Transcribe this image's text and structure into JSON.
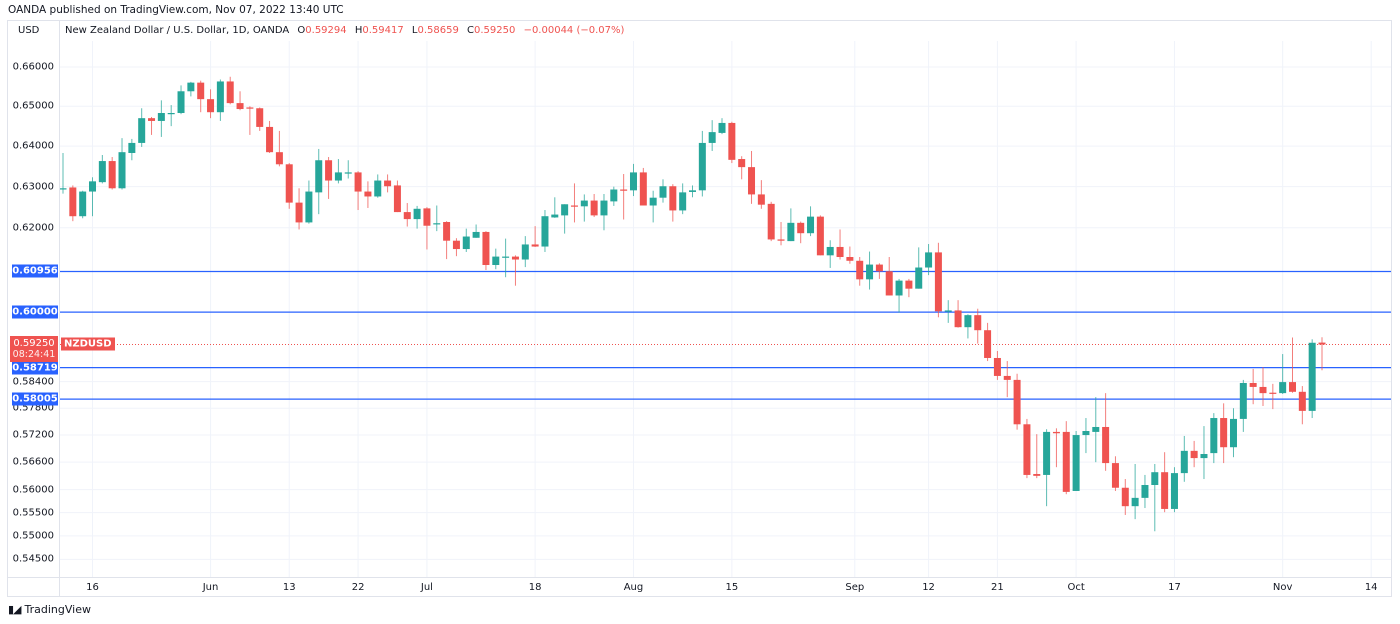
{
  "header": {
    "published": "OANDA published on TradingView.com, Nov 07, 2022 13:40 UTC",
    "currency": "USD",
    "title": "New Zealand Dollar / U.S. Dollar, 1D, OANDA",
    "o_label": "O",
    "o": "0.59294",
    "h_label": "H",
    "h": "0.59417",
    "l_label": "L",
    "l": "0.58659",
    "c_label": "C",
    "c": "0.59250",
    "change": "−0.00044 (−0.07%)"
  },
  "footer": {
    "logo_text": "TradingView",
    "logo_mark": "TV"
  },
  "colors": {
    "up": "#26a69a",
    "down": "#ef5350",
    "hline": "#2962ff",
    "grid": "#f0f3fa"
  },
  "chart_data": {
    "type": "candlestick",
    "symbol": "NZDUSD",
    "scale": "log",
    "ylim": [
      0.5405,
      0.6685
    ],
    "y_ticks": [
      "0.66000",
      "0.65000",
      "0.64000",
      "0.63000",
      "0.62000",
      "0.58400",
      "0.57800",
      "0.57200",
      "0.56600",
      "0.56000",
      "0.55500",
      "0.55000",
      "0.54500"
    ],
    "x_ticks": [
      {
        "label": "16",
        "index": 3
      },
      {
        "label": "Jun",
        "index": 15
      },
      {
        "label": "13",
        "index": 23
      },
      {
        "label": "22",
        "index": 30
      },
      {
        "label": "Jul",
        "index": 37
      },
      {
        "label": "18",
        "index": 48
      },
      {
        "label": "Aug",
        "index": 58
      },
      {
        "label": "15",
        "index": 68
      },
      {
        "label": "Sep",
        "index": 80.5
      },
      {
        "label": "12",
        "index": 88
      },
      {
        "label": "21",
        "index": 95
      },
      {
        "label": "Oct",
        "index": 103
      },
      {
        "label": "17",
        "index": 113
      },
      {
        "label": "Nov",
        "index": 124
      },
      {
        "label": "14",
        "index": 133
      }
    ],
    "horizontal_lines": [
      "0.60956",
      "0.60000",
      "0.58719",
      "0.58005"
    ],
    "last_price": {
      "value": "0.59250",
      "countdown": "08:24:41",
      "tag": "NZDUSD"
    },
    "ohlc": [
      [
        0.6293,
        0.6383,
        0.6283,
        0.6296
      ],
      [
        0.6298,
        0.6303,
        0.6216,
        0.6228
      ],
      [
        0.6228,
        0.629,
        0.6223,
        0.6288
      ],
      [
        0.6288,
        0.6323,
        0.6228,
        0.6313
      ],
      [
        0.6311,
        0.6378,
        0.6308,
        0.6363
      ],
      [
        0.6363,
        0.6373,
        0.6293,
        0.6296
      ],
      [
        0.6296,
        0.642,
        0.6293,
        0.6385
      ],
      [
        0.6383,
        0.6418,
        0.6365,
        0.6408
      ],
      [
        0.6408,
        0.6495,
        0.6398,
        0.647
      ],
      [
        0.647,
        0.6473,
        0.6428,
        0.6463
      ],
      [
        0.6463,
        0.6515,
        0.6423,
        0.6483
      ],
      [
        0.648,
        0.6503,
        0.645,
        0.6483
      ],
      [
        0.6483,
        0.6553,
        0.648,
        0.6538
      ],
      [
        0.6538,
        0.6562,
        0.6525,
        0.656
      ],
      [
        0.656,
        0.6565,
        0.6485,
        0.6518
      ],
      [
        0.6518,
        0.6543,
        0.647,
        0.6485
      ],
      [
        0.6485,
        0.6568,
        0.6463,
        0.6563
      ],
      [
        0.6563,
        0.6575,
        0.6505,
        0.6508
      ],
      [
        0.6508,
        0.6538,
        0.649,
        0.6493
      ],
      [
        0.6497,
        0.65,
        0.6428,
        0.6494
      ],
      [
        0.6495,
        0.6497,
        0.6438,
        0.6448
      ],
      [
        0.6448,
        0.6463,
        0.6383,
        0.6385
      ],
      [
        0.6385,
        0.6438,
        0.635,
        0.6355
      ],
      [
        0.6355,
        0.6358,
        0.6246,
        0.6261
      ],
      [
        0.6261,
        0.6296,
        0.6196,
        0.6213
      ],
      [
        0.6213,
        0.6315,
        0.621,
        0.6288
      ],
      [
        0.6286,
        0.6393,
        0.6233,
        0.6365
      ],
      [
        0.6365,
        0.6373,
        0.627,
        0.6315
      ],
      [
        0.6315,
        0.6368,
        0.6308,
        0.6335
      ],
      [
        0.6333,
        0.6365,
        0.632,
        0.6335
      ],
      [
        0.6335,
        0.6338,
        0.6243,
        0.6288
      ],
      [
        0.6288,
        0.6313,
        0.6248,
        0.6276
      ],
      [
        0.6276,
        0.633,
        0.6273,
        0.6315
      ],
      [
        0.6315,
        0.633,
        0.6286,
        0.6301
      ],
      [
        0.6303,
        0.6315,
        0.6238,
        0.6238
      ],
      [
        0.6238,
        0.626,
        0.6203,
        0.6221
      ],
      [
        0.6221,
        0.6253,
        0.6198,
        0.6246
      ],
      [
        0.6247,
        0.625,
        0.6148,
        0.6205
      ],
      [
        0.6209,
        0.6254,
        0.6192,
        0.6211
      ],
      [
        0.6214,
        0.6216,
        0.6125,
        0.6169
      ],
      [
        0.6169,
        0.6175,
        0.6132,
        0.6149
      ],
      [
        0.6149,
        0.6198,
        0.6142,
        0.6179
      ],
      [
        0.6176,
        0.6208,
        0.6176,
        0.619
      ],
      [
        0.619,
        0.6192,
        0.6099,
        0.6111
      ],
      [
        0.6111,
        0.615,
        0.6101,
        0.6131
      ],
      [
        0.6129,
        0.6174,
        0.6082,
        0.6131
      ],
      [
        0.6131,
        0.6134,
        0.6062,
        0.6124
      ],
      [
        0.6124,
        0.618,
        0.6106,
        0.616
      ],
      [
        0.616,
        0.6204,
        0.6154,
        0.6155
      ],
      [
        0.6155,
        0.6243,
        0.6142,
        0.6228
      ],
      [
        0.6225,
        0.6274,
        0.6224,
        0.6232
      ],
      [
        0.623,
        0.6257,
        0.6186,
        0.6257
      ],
      [
        0.6254,
        0.6308,
        0.6213,
        0.6252
      ],
      [
        0.6252,
        0.6281,
        0.6215,
        0.6266
      ],
      [
        0.6266,
        0.6282,
        0.6226,
        0.623
      ],
      [
        0.623,
        0.6282,
        0.6194,
        0.6266
      ],
      [
        0.6264,
        0.63,
        0.6253,
        0.6293
      ],
      [
        0.6293,
        0.6331,
        0.622,
        0.629
      ],
      [
        0.6291,
        0.6356,
        0.6277,
        0.6335
      ],
      [
        0.6335,
        0.6346,
        0.6254,
        0.6254
      ],
      [
        0.6254,
        0.629,
        0.6213,
        0.6273
      ],
      [
        0.6273,
        0.6318,
        0.6261,
        0.6301
      ],
      [
        0.6301,
        0.6306,
        0.6215,
        0.6242
      ],
      [
        0.6242,
        0.6308,
        0.6233,
        0.6286
      ],
      [
        0.6287,
        0.6303,
        0.6274,
        0.6291
      ],
      [
        0.6291,
        0.6438,
        0.6276,
        0.6408
      ],
      [
        0.6408,
        0.6465,
        0.6388,
        0.6435
      ],
      [
        0.6433,
        0.647,
        0.643,
        0.6458
      ],
      [
        0.6458,
        0.6461,
        0.6358,
        0.6366
      ],
      [
        0.6368,
        0.6375,
        0.6318,
        0.6348
      ],
      [
        0.6348,
        0.6388,
        0.6258,
        0.6281
      ],
      [
        0.6281,
        0.6316,
        0.6246,
        0.6256
      ],
      [
        0.6258,
        0.6263,
        0.6168,
        0.6172
      ],
      [
        0.6172,
        0.6214,
        0.6158,
        0.6169
      ],
      [
        0.6168,
        0.6247,
        0.6168,
        0.6212
      ],
      [
        0.6212,
        0.6215,
        0.6163,
        0.6187
      ],
      [
        0.6187,
        0.6252,
        0.618,
        0.6227
      ],
      [
        0.6227,
        0.623,
        0.6134,
        0.6134
      ],
      [
        0.6134,
        0.617,
        0.6104,
        0.6154
      ],
      [
        0.6154,
        0.6196,
        0.6124,
        0.613
      ],
      [
        0.613,
        0.6155,
        0.6114,
        0.6121
      ],
      [
        0.6121,
        0.613,
        0.6062,
        0.6077
      ],
      [
        0.6077,
        0.6143,
        0.6053,
        0.6112
      ],
      [
        0.6112,
        0.6115,
        0.6078,
        0.6096
      ],
      [
        0.6096,
        0.613,
        0.6039,
        0.6039
      ],
      [
        0.6039,
        0.6078,
        0.5999,
        0.6074
      ],
      [
        0.6074,
        0.6078,
        0.6035,
        0.6055
      ],
      [
        0.6055,
        0.6153,
        0.6055,
        0.6105
      ],
      [
        0.6105,
        0.6161,
        0.6087,
        0.6141
      ],
      [
        0.6141,
        0.6164,
        0.5988,
        0.6002
      ],
      [
        0.6002,
        0.6028,
        0.5975,
        0.6004
      ],
      [
        0.6004,
        0.6028,
        0.5964,
        0.5965
      ],
      [
        0.5965,
        0.5995,
        0.5939,
        0.5993
      ],
      [
        0.5993,
        0.6008,
        0.5927,
        0.5958
      ],
      [
        0.5958,
        0.5975,
        0.5887,
        0.5894
      ],
      [
        0.5894,
        0.591,
        0.5844,
        0.5853
      ],
      [
        0.5853,
        0.5887,
        0.5805,
        0.5844
      ],
      [
        0.5844,
        0.5858,
        0.5732,
        0.5744
      ],
      [
        0.5744,
        0.5756,
        0.5625,
        0.5632
      ],
      [
        0.5634,
        0.5722,
        0.5625,
        0.563
      ],
      [
        0.5632,
        0.5733,
        0.5564,
        0.5727
      ],
      [
        0.5727,
        0.5735,
        0.5649,
        0.5724
      ],
      [
        0.5727,
        0.5751,
        0.559,
        0.5595
      ],
      [
        0.5597,
        0.5729,
        0.5597,
        0.572
      ],
      [
        0.572,
        0.5758,
        0.568,
        0.5729
      ],
      [
        0.5727,
        0.5805,
        0.566,
        0.5738
      ],
      [
        0.5738,
        0.5814,
        0.5641,
        0.5658
      ],
      [
        0.5658,
        0.5673,
        0.5597,
        0.5604
      ],
      [
        0.5604,
        0.5623,
        0.5545,
        0.5564
      ],
      [
        0.5564,
        0.5656,
        0.5536,
        0.5582
      ],
      [
        0.5582,
        0.5632,
        0.556,
        0.561
      ],
      [
        0.561,
        0.5656,
        0.551,
        0.5638
      ],
      [
        0.5638,
        0.5682,
        0.5551,
        0.5558
      ],
      [
        0.5558,
        0.5649,
        0.5551,
        0.5636
      ],
      [
        0.5636,
        0.5718,
        0.5617,
        0.5685
      ],
      [
        0.5685,
        0.5707,
        0.5649,
        0.5669
      ],
      [
        0.5669,
        0.574,
        0.5623,
        0.5678
      ],
      [
        0.568,
        0.5769,
        0.5658,
        0.5758
      ],
      [
        0.5758,
        0.5791,
        0.5658,
        0.5693
      ],
      [
        0.5693,
        0.578,
        0.5671,
        0.5756
      ],
      [
        0.5756,
        0.5844,
        0.5727,
        0.5837
      ],
      [
        0.5837,
        0.5869,
        0.5789,
        0.5828
      ],
      [
        0.5828,
        0.5873,
        0.5785,
        0.5814
      ],
      [
        0.5815,
        0.5835,
        0.5778,
        0.5814
      ],
      [
        0.5814,
        0.5903,
        0.5812,
        0.5839
      ],
      [
        0.5839,
        0.5941,
        0.5815,
        0.5817
      ],
      [
        0.5817,
        0.583,
        0.5744,
        0.5774
      ],
      [
        0.5774,
        0.5937,
        0.5758,
        0.5929
      ],
      [
        0.59294,
        0.59417,
        0.58659,
        0.5925
      ]
    ]
  }
}
